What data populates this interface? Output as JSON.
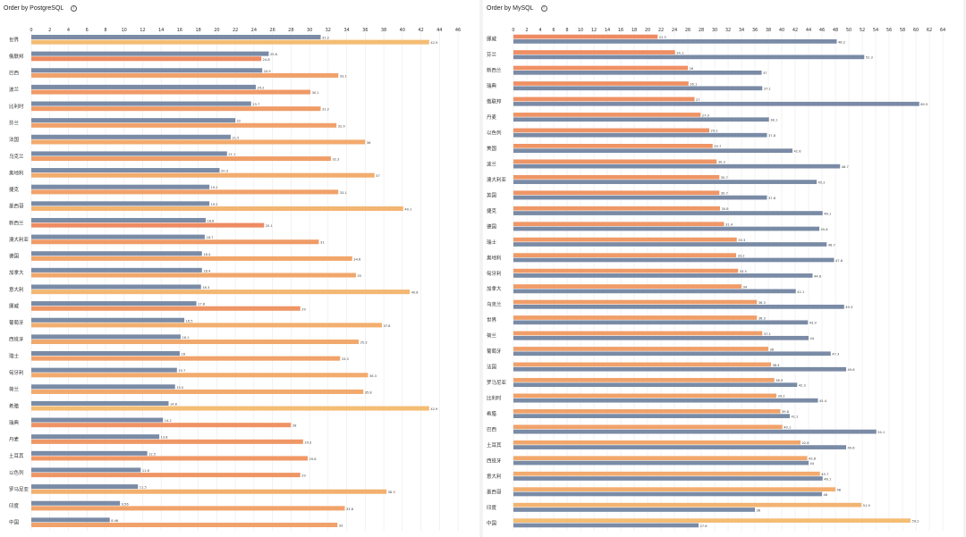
{
  "colors": {
    "series_primary_pg": "#7a8ba6",
    "series_secondary_pg_low": "#ee8a62",
    "series_secondary_pg_high": "#f4bd74",
    "series_primary_my_low": "#ee8a62",
    "series_primary_my_high": "#f4bd74",
    "series_secondary_my": "#7a8ba6",
    "grid": "#e6e6e6",
    "text": "#333333"
  },
  "charts": {
    "postgres": {
      "title": "Order by PostgreSQL",
      "info_icon": "info-icon",
      "chart_data": {
        "type": "bar",
        "orientation": "horizontal",
        "title": "Order by PostgreSQL",
        "xlim": [
          0,
          46
        ],
        "xticks": [
          0,
          2,
          4,
          6,
          8,
          10,
          12,
          14,
          16,
          18,
          20,
          22,
          24,
          26,
          28,
          30,
          32,
          34,
          36,
          38,
          40,
          42,
          44,
          46
        ],
        "categories": [
          "世界",
          "俄联邦",
          "巴西",
          "波兰",
          "比利时",
          "芬兰",
          "法国",
          "乌克兰",
          "奥地利",
          "捷克",
          "墨西哥",
          "新西兰",
          "澳大利亚",
          "德国",
          "加拿大",
          "意大利",
          "挪威",
          "葡萄牙",
          "西班牙",
          "瑞士",
          "匈牙利",
          "荷兰",
          "希腊",
          "瑞典",
          "丹麦",
          "土耳其",
          "以色列",
          "罗马尼亚",
          "印度",
          "中国"
        ],
        "series": [
          {
            "name": "PostgreSQL",
            "values": [
              31.2,
              25.6,
              24.9,
              24.2,
              23.7,
              22,
              21.5,
              21.1,
              20.3,
              19.2,
              19.2,
              18.8,
              18.7,
              18.4,
              18.4,
              18.3,
              17.8,
              16.5,
              16.1,
              16,
              15.7,
              15.5,
              14.8,
              14.2,
              13.8,
              12.5,
              11.8,
              11.5,
              9.56,
              8.46
            ]
          },
          {
            "name": "MySQL",
            "values": [
              42.9,
              24.8,
              33.1,
              30.1,
              31.2,
              32.9,
              36,
              32.3,
              37,
              33.1,
              40.1,
              25.1,
              31,
              34.6,
              35,
              40.8,
              29,
              37.8,
              35.3,
              33.3,
              36.3,
              35.8,
              42.9,
              28,
              29.3,
              29.8,
              29,
              38.3,
              33.8,
              33
            ]
          }
        ]
      }
    },
    "mysql": {
      "title": "Order by MySQL",
      "info_icon": "info-icon",
      "chart_data": {
        "type": "bar",
        "orientation": "horizontal",
        "title": "Order by MySQL",
        "xlim": [
          0,
          64
        ],
        "xticks": [
          0,
          2,
          4,
          6,
          8,
          10,
          12,
          14,
          16,
          18,
          20,
          22,
          24,
          26,
          28,
          30,
          32,
          34,
          36,
          38,
          40,
          42,
          44,
          46,
          48,
          50,
          52,
          54,
          56,
          58,
          60,
          62,
          64
        ],
        "categories": [
          "挪威",
          "芬兰",
          "新西兰",
          "瑞典",
          "俄联邦",
          "丹麦",
          "以色列",
          "美国",
          "波兰",
          "澳大利亚",
          "英国",
          "捷克",
          "德国",
          "瑞士",
          "奥地利",
          "匈牙利",
          "加拿大",
          "乌克兰",
          "世界",
          "荷兰",
          "葡萄牙",
          "法国",
          "罗马尼亚",
          "比利时",
          "希腊",
          "巴西",
          "土耳其",
          "西班牙",
          "意大利",
          "墨西哥",
          "印度",
          "中国"
        ],
        "series": [
          {
            "name": "MySQL",
            "values": [
              21.5,
              24.1,
              26,
              26.1,
              27,
              27.9,
              29.2,
              29.7,
              30.3,
              30.7,
              30.7,
              30.8,
              31.4,
              33.3,
              33.2,
              33.5,
              34,
              36.3,
              36.3,
              37.1,
              38,
              38.4,
              38.9,
              39.2,
              39.8,
              40.1,
              42.8,
              43.8,
              45.7,
              48,
              51.9,
              59.2
            ]
          },
          {
            "name": "PostgreSQL",
            "values": [
              48.2,
              52.3,
              37,
              37.1,
              60.5,
              38.1,
              37.8,
              41.6,
              48.7,
              45.2,
              37.8,
              46.1,
              45.6,
              46.7,
              47.8,
              44.6,
              42.1,
              49.3,
              43.9,
              44,
              47.3,
              49.6,
              42.3,
              45.4,
              41.2,
              54.1,
              49.6,
              44,
              46.1,
              46,
              36,
              27.6
            ]
          }
        ]
      }
    }
  }
}
